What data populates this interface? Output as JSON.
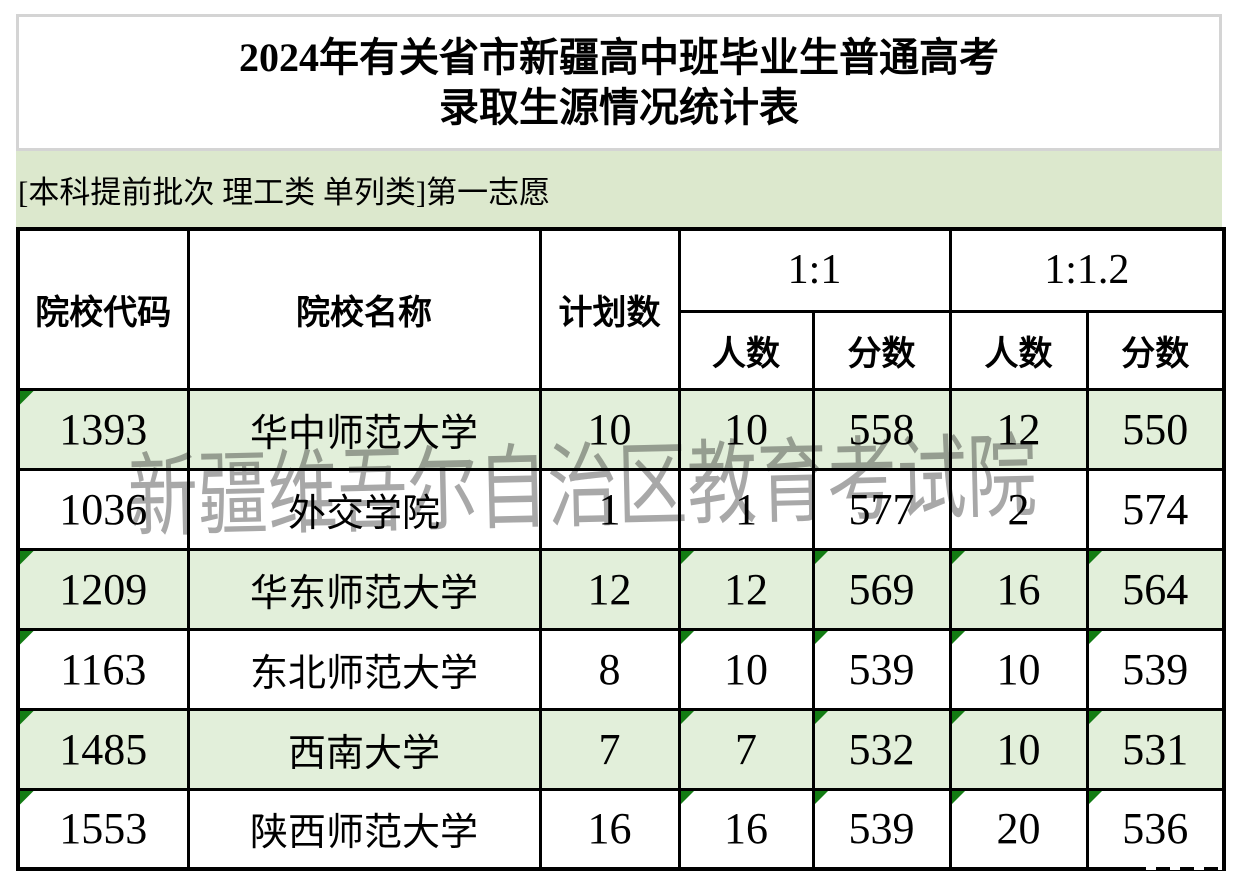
{
  "header": {
    "title_line1": "2024年有关省市新疆高中班毕业生普通高考",
    "title_line2": "录取生源情况统计表",
    "section_label": "[本科提前批次 理工类 单列类]第一志愿",
    "watermark": "新疆维吾尔自治区教育考试院"
  },
  "table": {
    "columns": {
      "code": "院校代码",
      "name": "院校名称",
      "plan": "计划数",
      "group1": "1:1",
      "group2": "1:1.2",
      "count": "人数",
      "score": "分数"
    },
    "rows": [
      {
        "code": "1393",
        "name": "华中师范大学",
        "plan": "10",
        "ratio1_count": "10",
        "ratio1_score": "558",
        "ratio2_count": "12",
        "ratio2_score": "550",
        "shaded": true,
        "corner_flags": [
          "code"
        ]
      },
      {
        "code": "1036",
        "name": "外交学院",
        "plan": "1",
        "ratio1_count": "1",
        "ratio1_score": "577",
        "ratio2_count": "2",
        "ratio2_score": "574",
        "shaded": false,
        "corner_flags": []
      },
      {
        "code": "1209",
        "name": "华东师范大学",
        "plan": "12",
        "ratio1_count": "12",
        "ratio1_score": "569",
        "ratio2_count": "16",
        "ratio2_score": "564",
        "shaded": true,
        "corner_flags": [
          "code",
          "ratio1_count",
          "ratio1_score",
          "ratio2_count",
          "ratio2_score"
        ]
      },
      {
        "code": "1163",
        "name": "东北师范大学",
        "plan": "8",
        "ratio1_count": "10",
        "ratio1_score": "539",
        "ratio2_count": "10",
        "ratio2_score": "539",
        "shaded": false,
        "corner_flags": [
          "code",
          "ratio1_count",
          "ratio1_score",
          "ratio2_count",
          "ratio2_score"
        ]
      },
      {
        "code": "1485",
        "name": "西南大学",
        "plan": "7",
        "ratio1_count": "7",
        "ratio1_score": "532",
        "ratio2_count": "10",
        "ratio2_score": "531",
        "shaded": true,
        "corner_flags": [
          "code",
          "ratio1_count",
          "ratio1_score",
          "ratio2_count",
          "ratio2_score"
        ]
      },
      {
        "code": "1553",
        "name": "陕西师范大学",
        "plan": "16",
        "ratio1_count": "16",
        "ratio1_score": "539",
        "ratio2_count": "20",
        "ratio2_score": "536",
        "shaded": false,
        "corner_flags": [
          "code",
          "ratio1_count",
          "ratio1_score",
          "ratio2_count",
          "ratio2_score"
        ]
      }
    ]
  },
  "colors": {
    "row_green": "#e2efda",
    "band_green": "#dce8cd",
    "flag_green": "#137c13",
    "grid_black": "#000000",
    "frame_border": "#d4d4d4",
    "watermark_gray": "#a8a8a8"
  }
}
